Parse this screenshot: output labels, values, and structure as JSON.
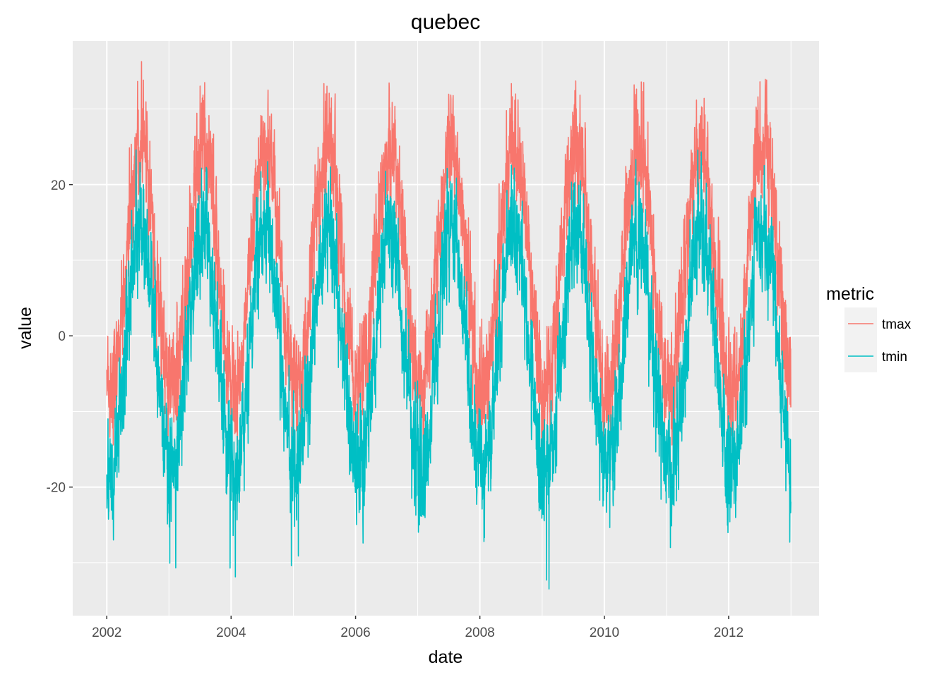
{
  "chart_data": {
    "type": "line",
    "title": "quebec",
    "xlabel": "date",
    "ylabel": "value",
    "x_range": [
      "2001-06-15",
      "2013-06-15"
    ],
    "xlim": [
      "2001-06-15",
      "2013-06-15"
    ],
    "ylim": [
      -37,
      39
    ],
    "x_ticks": [
      "2002",
      "2004",
      "2006",
      "2008",
      "2010",
      "2012"
    ],
    "y_ticks": [
      -20,
      0,
      20
    ],
    "grid": true,
    "legend": {
      "title": "metric",
      "position": "right"
    },
    "series": [
      {
        "name": "tmax",
        "color": "#F8766D",
        "annual_cycle": {
          "mean": 9,
          "amplitude": 16,
          "peak_month": "Jul",
          "daily_noise": 5
        },
        "approx_yearly_peaks": [
          {
            "year": 2002,
            "value": 34
          },
          {
            "year": 2003,
            "value": 35
          },
          {
            "year": 2004,
            "value": 31
          },
          {
            "year": 2005,
            "value": 33
          },
          {
            "year": 2006,
            "value": 33
          },
          {
            "year": 2007,
            "value": 32
          },
          {
            "year": 2008,
            "value": 32
          },
          {
            "year": 2009,
            "value": 31
          },
          {
            "year": 2010,
            "value": 34
          },
          {
            "year": 2011,
            "value": 30
          },
          {
            "year": 2012,
            "value": 34
          }
        ]
      },
      {
        "name": "tmin",
        "color": "#00BFC4",
        "annual_cycle": {
          "mean": -2,
          "amplitude": 16,
          "peak_month": "Jul",
          "daily_noise": 5
        },
        "approx_yearly_lows": [
          {
            "year": 2002,
            "value": -24
          },
          {
            "year": 2003,
            "value": -31
          },
          {
            "year": 2004,
            "value": -32
          },
          {
            "year": 2005,
            "value": -30
          },
          {
            "year": 2006,
            "value": -24
          },
          {
            "year": 2007,
            "value": -26
          },
          {
            "year": 2008,
            "value": -27
          },
          {
            "year": 2009,
            "value": -34
          },
          {
            "year": 2010,
            "value": -27
          },
          {
            "year": 2011,
            "value": -28
          },
          {
            "year": 2012,
            "value": -26
          }
        ]
      }
    ]
  }
}
